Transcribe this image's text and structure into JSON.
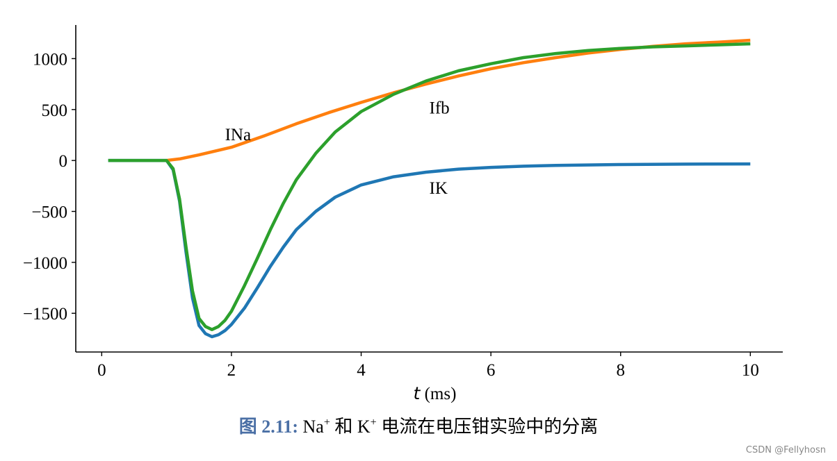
{
  "chart_data": {
    "type": "line",
    "xlabel_symbol": "t",
    "xlabel_unit": "(ms)",
    "xlim": [
      -0.4,
      10.5
    ],
    "ylim": [
      -1880,
      1330
    ],
    "xticks": [
      0,
      2,
      4,
      6,
      8,
      10
    ],
    "yticks": [
      -1500,
      -1000,
      -500,
      0,
      500,
      1000
    ],
    "xtick_labels": [
      "0",
      "2",
      "4",
      "6",
      "8",
      "10"
    ],
    "ytick_labels": [
      "−1500",
      "−1000",
      "−500",
      "0",
      "500",
      "1000"
    ],
    "grid": false,
    "series": [
      {
        "name": "IK",
        "color": "#1f77b4",
        "x": [
          0.1,
          1.0,
          1.1,
          1.2,
          1.3,
          1.4,
          1.5,
          1.6,
          1.7,
          1.8,
          1.9,
          2.0,
          2.2,
          2.4,
          2.6,
          2.8,
          3.0,
          3.3,
          3.6,
          4.0,
          4.5,
          5.0,
          5.5,
          6.0,
          6.5,
          7.0,
          8.0,
          9.0,
          10.0
        ],
        "y": [
          0,
          0,
          -90,
          -400,
          -900,
          -1350,
          -1620,
          -1700,
          -1730,
          -1710,
          -1670,
          -1610,
          -1450,
          -1250,
          -1040,
          -850,
          -680,
          -500,
          -360,
          -240,
          -160,
          -115,
          -85,
          -68,
          -56,
          -48,
          -40,
          -36,
          -34
        ]
      },
      {
        "name": "INa",
        "color": "#ff7f0e",
        "x": [
          1.0,
          1.2,
          1.5,
          2.0,
          2.5,
          3.0,
          3.5,
          4.0,
          4.5,
          5.0,
          5.5,
          6.0,
          6.5,
          7.0,
          7.5,
          8.0,
          8.5,
          9.0,
          9.5,
          10.0
        ],
        "y": [
          0,
          15,
          55,
          130,
          240,
          360,
          470,
          570,
          665,
          750,
          830,
          900,
          960,
          1010,
          1055,
          1090,
          1120,
          1145,
          1162,
          1180
        ]
      },
      {
        "name": "Ifb",
        "color": "#2ca02c",
        "x": [
          0.1,
          1.0,
          1.1,
          1.2,
          1.3,
          1.4,
          1.5,
          1.6,
          1.7,
          1.8,
          1.9,
          2.0,
          2.2,
          2.4,
          2.6,
          2.8,
          3.0,
          3.3,
          3.6,
          4.0,
          4.5,
          5.0,
          5.5,
          6.0,
          6.5,
          7.0,
          7.5,
          8.0,
          8.5,
          9.0,
          9.5,
          10.0
        ],
        "y": [
          0,
          0,
          -80,
          -380,
          -850,
          -1280,
          -1550,
          -1630,
          -1660,
          -1630,
          -1570,
          -1480,
          -1230,
          -960,
          -680,
          -420,
          -190,
          70,
          280,
          480,
          650,
          780,
          880,
          950,
          1010,
          1050,
          1080,
          1100,
          1115,
          1125,
          1135,
          1145
        ]
      }
    ],
    "labels": [
      {
        "text": "INa",
        "x": 1.9,
        "y": 200
      },
      {
        "text": "Ifb",
        "x": 5.05,
        "y": 460
      },
      {
        "text": "IK",
        "x": 5.05,
        "y": -325
      }
    ]
  },
  "caption": {
    "figure_number": "图 2.11:",
    "text_na": "Na",
    "sup_na": "+",
    "text_mid": " 和 K",
    "sup_k": "+",
    "text_rest": " 电流在电压钳实验中的分离"
  },
  "watermark": "CSDN @Fellyhosn"
}
